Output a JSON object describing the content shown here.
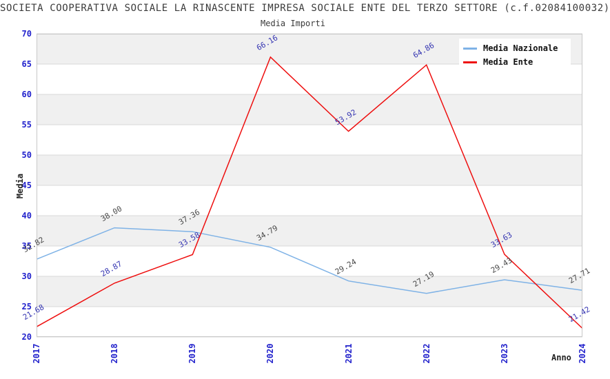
{
  "header": {
    "title": "SOCIETA COOPERATIVA SOCIALE LA RINASCENTE IMPRESA SOCIALE ENTE DEL TERZO SETTORE (c.f.02084100032)",
    "subtitle": "Media Importi"
  },
  "chart_data": {
    "type": "line",
    "title": "Media Importi",
    "xlabel": "Anno",
    "ylabel": "Media",
    "ylim": [
      20,
      70
    ],
    "yticks": [
      20,
      25,
      30,
      35,
      40,
      45,
      50,
      55,
      60,
      65,
      70
    ],
    "categories": [
      "2017",
      "2018",
      "2019",
      "2020",
      "2021",
      "2022",
      "2023",
      "2024"
    ],
    "series": [
      {
        "name": "Media Nazionale",
        "color": "#7EB2E6",
        "label_color": "#4a4a4a",
        "values": [
          32.82,
          38.0,
          37.36,
          34.79,
          29.24,
          27.19,
          29.43,
          27.71
        ]
      },
      {
        "name": "Media Ente",
        "color": "#EE0E0E",
        "label_color": "#3636B2",
        "values": [
          21.68,
          28.87,
          33.58,
          66.16,
          53.92,
          64.86,
          33.63,
          21.42
        ]
      }
    ],
    "legend_position": "top-right",
    "grid": "horizontal-bands-alternating",
    "palette": {
      "band_gray": "#f0f0f0",
      "band_white": "#ffffff",
      "gridline": "#d9d9d9",
      "border": "#c8c8c8",
      "tick_label": "#2222cc",
      "text": "#3a3a3a"
    }
  }
}
